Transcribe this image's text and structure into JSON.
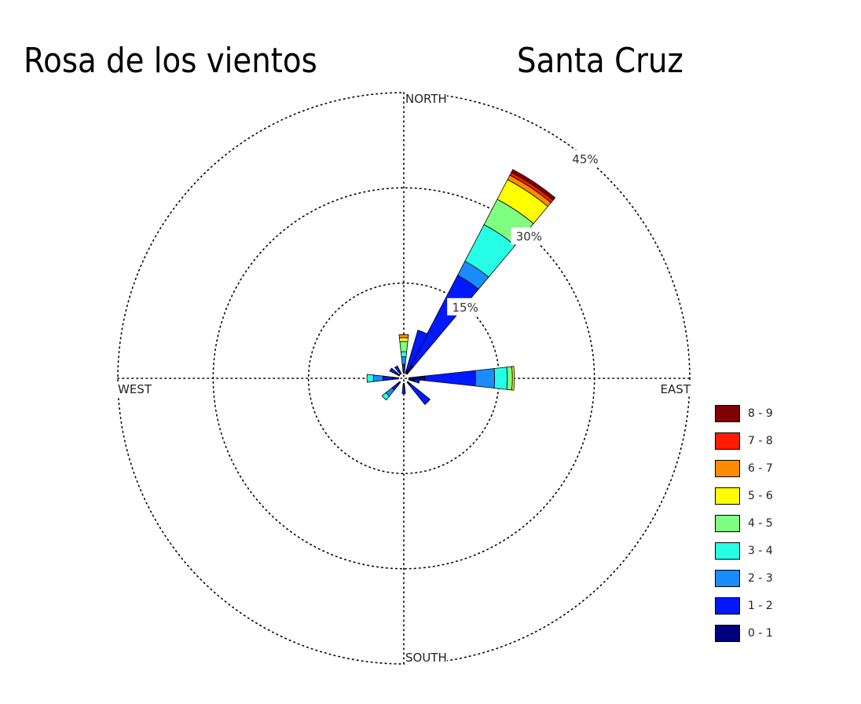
{
  "title_left": "Rosa de los vientos",
  "title_right": "Santa Cruz",
  "chart_data": {
    "type": "windrose",
    "directions": [
      "NORTH",
      "EAST",
      "SOUTH",
      "WEST"
    ],
    "rings": [
      15,
      30,
      45
    ],
    "ring_labels": [
      "15%",
      "30%",
      "45%"
    ],
    "grid": true,
    "legend_position": "bottom-right",
    "bins": [
      "0 - 1",
      "1 - 2",
      "2 - 3",
      "3 - 4",
      "4 - 5",
      "5 - 6",
      "6 - 7",
      "7 - 8",
      "8 - 9"
    ],
    "bin_colors": [
      "#00007f",
      "#0019ff",
      "#1a8cff",
      "#26ffe6",
      "#7fff7f",
      "#ffff00",
      "#ff8c00",
      "#ff1a00",
      "#7f0000"
    ],
    "sectors": [
      {
        "direction_deg": 0,
        "frequency": [
          0.6,
          0.8,
          1.2,
          0.8,
          1.6,
          0.6,
          0.5,
          0,
          0
        ]
      },
      {
        "direction_deg": 33.75,
        "frequency": [
          1.5,
          16,
          2.5,
          6.5,
          4.5,
          3.5,
          0.8,
          0.5,
          0.5
        ]
      },
      {
        "direction_deg": 22.5,
        "frequency": [
          0.6,
          6.5,
          0,
          0,
          0,
          0,
          0,
          0,
          0
        ]
      },
      {
        "direction_deg": 90,
        "frequency": [
          2.5,
          8,
          3,
          2,
          0.8,
          0.3,
          0,
          0,
          0
        ]
      },
      {
        "direction_deg": 101.25,
        "frequency": [
          1.0,
          0.7,
          0,
          0,
          0,
          0,
          0,
          0,
          0
        ]
      },
      {
        "direction_deg": 135,
        "frequency": [
          0.6,
          3.9,
          0,
          0,
          0,
          0,
          0,
          0,
          0
        ]
      },
      {
        "direction_deg": 180,
        "frequency": [
          0.6,
          1.0,
          0,
          0,
          0,
          0,
          0,
          0,
          0
        ]
      },
      {
        "direction_deg": 225,
        "frequency": [
          0.6,
          1.0,
          1.2,
          0.8,
          0,
          0,
          0,
          0,
          0
        ]
      },
      {
        "direction_deg": 270,
        "frequency": [
          1.0,
          1.5,
          1.5,
          1.0,
          0,
          0,
          0,
          0,
          0
        ]
      },
      {
        "direction_deg": 303.75,
        "frequency": [
          0.6,
          1.1,
          0,
          0,
          0,
          0,
          0,
          0,
          0
        ]
      },
      {
        "direction_deg": 326.25,
        "frequency": [
          0.6,
          0.8,
          0,
          0,
          0,
          0,
          0,
          0,
          0
        ]
      }
    ]
  }
}
